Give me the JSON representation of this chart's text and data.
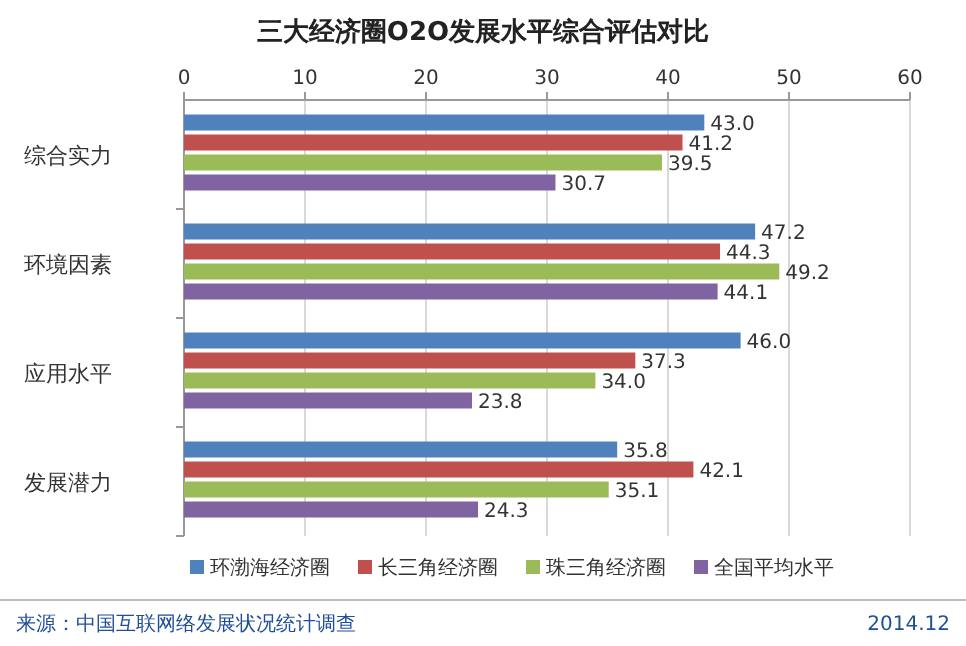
{
  "chart_data": {
    "type": "bar",
    "orientation": "horizontal",
    "title": "三大经济圈O2O发展水平综合评估对比",
    "categories": [
      "综合实力",
      "环境因素",
      "应用水平",
      "发展潜力"
    ],
    "series": [
      {
        "name": "环渤海经济圈",
        "color": "#4f81bd",
        "values": [
          43.0,
          47.2,
          46.0,
          35.8
        ],
        "value_labels": [
          "43.0",
          "47.2",
          "46.0",
          "35.8"
        ]
      },
      {
        "name": "长三角经济圈",
        "color": "#c0504d",
        "values": [
          41.2,
          44.3,
          37.3,
          42.1
        ],
        "value_labels": [
          "41.2",
          "44.3",
          "37.3",
          "42.1"
        ]
      },
      {
        "name": "珠三角经济圈",
        "color": "#9bbb59",
        "values": [
          39.5,
          49.2,
          34.0,
          35.1
        ],
        "value_labels": [
          "39.5",
          "49.2",
          "34.0",
          "35.1"
        ]
      },
      {
        "name": "全国平均水平",
        "color": "#8064a2",
        "values": [
          30.7,
          44.1,
          23.8,
          24.3
        ],
        "value_labels": [
          "30.7",
          "44.1",
          "23.8",
          "24.3"
        ]
      }
    ],
    "xlim": [
      0,
      60
    ],
    "xticks": [
      0,
      10,
      20,
      30,
      40,
      50,
      60
    ],
    "grid": "x",
    "legend": "bottom",
    "annotations": [
      "来源：中国互联网络发展状况统计调查",
      "2014.12"
    ]
  }
}
